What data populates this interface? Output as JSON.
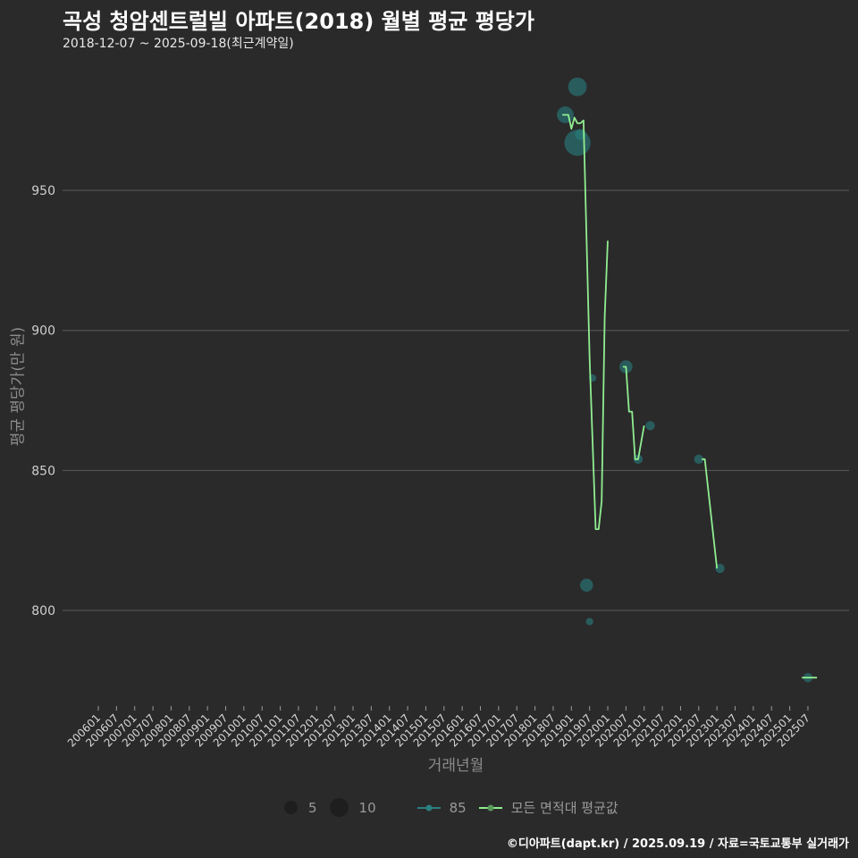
{
  "header": {
    "title": "곡성 청암센트럴빌 아파트(2018) 월별 평균 평당가",
    "subtitle": "2018-12-07 ~ 2025-09-18(최근계약일)"
  },
  "footer": {
    "credit": "©디아파트(dapt.kr) / 2025.09.19 / 자료=국토교통부 실거래가"
  },
  "colors": {
    "background": "#2a2a2b",
    "grid": "#5a5a5a",
    "avg_line": "#90ee90",
    "area85": "#2a7f7f"
  },
  "legend": {
    "size_items": [
      {
        "label": "5",
        "size": 5
      },
      {
        "label": "10",
        "size": 10
      }
    ],
    "series_items": [
      {
        "label": "85",
        "color": "#2a7f7f"
      },
      {
        "label": "모든 면적대 평균값",
        "color": "#90ee90"
      }
    ]
  },
  "chart_data": {
    "type": "line",
    "title": "곡성 청암센트럴빌 아파트(2018) 월별 평균 평당가",
    "subtitle": "2018-12-07 ~ 2025-09-18(최근계약일)",
    "xlabel": "거래년월",
    "ylabel": "평균 평당가(만 원)",
    "ylim": [
      765,
      995
    ],
    "yticks": [
      800,
      850,
      900,
      950
    ],
    "grid": true,
    "legend_position": "bottom",
    "x_ticks": [
      "200601",
      "200607",
      "200701",
      "200707",
      "200801",
      "200807",
      "200901",
      "200907",
      "201001",
      "201007",
      "201101",
      "201107",
      "201201",
      "201207",
      "201301",
      "201307",
      "201401",
      "201407",
      "201501",
      "201507",
      "201601",
      "201607",
      "201701",
      "201707",
      "201801",
      "201807",
      "201901",
      "201907",
      "202001",
      "202007",
      "202101",
      "202107",
      "202201",
      "202207",
      "202301",
      "202307",
      "202401",
      "202407",
      "202501",
      "202507"
    ],
    "series": [
      {
        "name": "모든 면적대 평균값",
        "type": "line",
        "x": [
          "201810",
          "201812",
          "201901",
          "201902",
          "201903",
          "201904",
          "201905",
          "201907",
          "201909",
          "201910",
          "201911",
          "201912",
          "202001",
          "202004",
          "202006",
          "202007",
          "202008",
          "202009",
          "202010",
          "202011",
          "202101",
          "202204",
          "202208",
          "202209",
          "202301",
          "202505",
          "202510"
        ],
        "values": [
          977,
          977,
          972,
          976,
          974,
          974,
          975,
          890,
          829,
          829,
          839,
          905,
          932,
          932,
          887,
          887,
          871,
          871,
          854,
          854,
          866,
          866,
          854,
          854,
          815,
          776,
          776
        ]
      },
      {
        "name": "85",
        "type": "scatter",
        "points": [
          {
            "x": "201811",
            "y": 977,
            "size": 7
          },
          {
            "x": "201903",
            "y": 987,
            "size": 8
          },
          {
            "x": "201903",
            "y": 967,
            "size": 12
          },
          {
            "x": "201904",
            "y": 970,
            "size": 4
          },
          {
            "x": "201906",
            "y": 809,
            "size": 5
          },
          {
            "x": "201907",
            "y": 796,
            "size": 2
          },
          {
            "x": "201908",
            "y": 883,
            "size": 2
          },
          {
            "x": "202007",
            "y": 887,
            "size": 5
          },
          {
            "x": "202011",
            "y": 854,
            "size": 3
          },
          {
            "x": "202103",
            "y": 866,
            "size": 3
          },
          {
            "x": "202207",
            "y": 854,
            "size": 3
          },
          {
            "x": "202302",
            "y": 815,
            "size": 3
          },
          {
            "x": "202507",
            "y": 776,
            "size": 3
          }
        ]
      }
    ]
  }
}
